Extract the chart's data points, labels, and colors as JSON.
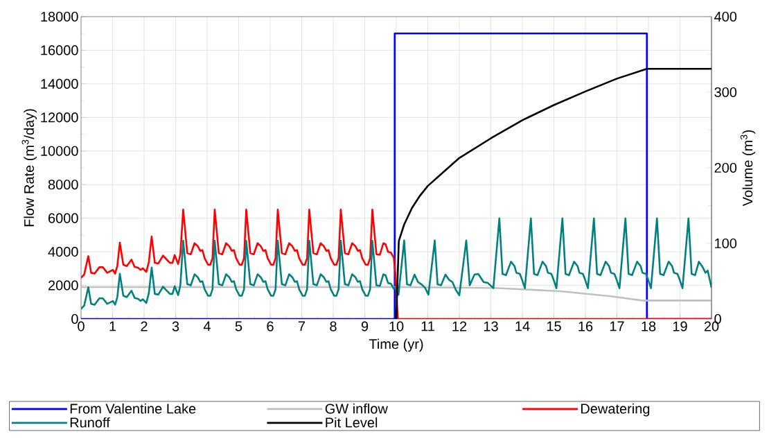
{
  "chart_data": {
    "type": "line",
    "xlabel": "Time (yr)",
    "ylabel": "Flow Rate (m$^{3}$/day)",
    "y2label": "Volume (m$^{3}$)",
    "xlim": [
      0,
      20
    ],
    "xticks": [
      0,
      1,
      2,
      3,
      4,
      5,
      6,
      7,
      8,
      9,
      10,
      11,
      12,
      13,
      14,
      15,
      16,
      17,
      18,
      19,
      20
    ],
    "ylim": [
      0,
      18000
    ],
    "yticks": [
      0,
      2000,
      4000,
      6000,
      8000,
      10000,
      12000,
      14000,
      16000,
      18000
    ],
    "y2lim": [
      0,
      400
    ],
    "y2ticks": [
      0,
      100,
      200,
      300,
      400
    ],
    "grid": true,
    "legend": "bottom",
    "series": [
      {
        "name": "From Valentine Lake",
        "color": "#0000ff",
        "x": [
          0,
          9.95,
          9.95,
          17.95,
          17.95,
          20
        ],
        "values": [
          0,
          0,
          17000,
          17000,
          0,
          0
        ]
      },
      {
        "name": "GW inflow",
        "color": "#c0c0c0",
        "x": [
          0,
          10,
          13.1,
          15.2,
          16.8,
          17.8,
          18,
          20
        ],
        "values": [
          1900,
          1900,
          1850,
          1650,
          1350,
          1100,
          1100,
          1100
        ]
      },
      {
        "name": "Dewatering",
        "color": "#ff0000",
        "x": [
          0,
          0.1,
          0.23,
          0.32,
          0.43,
          0.58,
          0.69,
          0.83,
          1.01,
          1.08,
          1.15,
          1.23,
          1.34,
          1.45,
          1.6,
          1.7,
          1.81,
          1.89,
          1.96,
          2.07,
          2.15,
          2.24,
          2.34,
          2.45,
          2.6,
          2.71,
          2.82,
          2.9,
          2.97,
          3.08,
          3.15,
          3.24,
          3.37,
          3.48,
          3.6,
          3.7,
          3.78,
          3.85,
          3.92,
          4.03,
          4.1,
          4.17,
          4.24,
          4.37,
          4.48,
          4.6,
          4.7,
          4.78,
          4.85,
          4.92,
          5.03,
          5.1,
          5.17,
          5.24,
          5.37,
          5.48,
          5.6,
          5.7,
          5.78,
          5.85,
          5.92,
          6.03,
          6.1,
          6.17,
          6.24,
          6.37,
          6.48,
          6.6,
          6.7,
          6.78,
          6.85,
          6.92,
          7.03,
          7.1,
          7.17,
          7.24,
          7.37,
          7.48,
          7.6,
          7.7,
          7.78,
          7.85,
          7.92,
          8.03,
          8.1,
          8.17,
          8.24,
          8.37,
          8.48,
          8.6,
          8.7,
          8.78,
          8.85,
          8.92,
          9.03,
          9.1,
          9.17,
          9.24,
          9.37,
          9.48,
          9.59,
          9.66,
          9.74,
          9.83,
          9.92,
          9.97,
          10.05,
          20
        ],
        "values": [
          2450,
          2650,
          3740,
          2750,
          2700,
          3080,
          3080,
          2750,
          2920,
          2700,
          3150,
          4540,
          3230,
          3150,
          3530,
          3100,
          3050,
          2920,
          3020,
          2800,
          3380,
          4910,
          3340,
          3300,
          3770,
          3550,
          3340,
          3340,
          3800,
          3270,
          3850,
          6510,
          3920,
          3850,
          4510,
          4340,
          4060,
          4100,
          3620,
          3230,
          3230,
          3620,
          6510,
          3920,
          3850,
          4510,
          4340,
          4060,
          4100,
          3620,
          3230,
          3230,
          3620,
          6510,
          3920,
          3850,
          4510,
          4340,
          4060,
          4100,
          3620,
          3230,
          3230,
          3620,
          6510,
          3920,
          3850,
          4510,
          4340,
          4060,
          4100,
          3620,
          3230,
          3230,
          3620,
          6510,
          3920,
          3850,
          4510,
          4340,
          4060,
          4100,
          3620,
          3230,
          3230,
          3620,
          6510,
          3920,
          3850,
          4510,
          4340,
          4060,
          4100,
          3620,
          3230,
          3230,
          3620,
          6510,
          3850,
          3820,
          4510,
          4450,
          3990,
          3950,
          3650,
          2750,
          0,
          0
        ]
      },
      {
        "name": "Runoff",
        "color": "#008080",
        "x": [
          0,
          0.1,
          0.23,
          0.32,
          0.43,
          0.58,
          0.69,
          0.83,
          1.01,
          1.08,
          1.15,
          1.23,
          1.34,
          1.45,
          1.6,
          1.7,
          1.81,
          1.89,
          1.96,
          2.07,
          2.15,
          2.24,
          2.34,
          2.45,
          2.6,
          2.71,
          2.82,
          2.9,
          2.97,
          3.08,
          3.15,
          3.24,
          3.37,
          3.48,
          3.6,
          3.7,
          3.78,
          3.85,
          3.92,
          4.03,
          4.1,
          4.17,
          4.24,
          4.37,
          4.48,
          4.6,
          4.7,
          4.78,
          4.85,
          4.92,
          5.03,
          5.1,
          5.17,
          5.24,
          5.37,
          5.48,
          5.6,
          5.7,
          5.78,
          5.85,
          5.92,
          6.03,
          6.1,
          6.17,
          6.24,
          6.37,
          6.48,
          6.6,
          6.7,
          6.78,
          6.85,
          6.92,
          7.03,
          7.1,
          7.17,
          7.24,
          7.37,
          7.48,
          7.6,
          7.7,
          7.78,
          7.85,
          7.92,
          8.03,
          8.1,
          8.17,
          8.24,
          8.37,
          8.48,
          8.6,
          8.7,
          8.78,
          8.85,
          8.92,
          9.03,
          9.1,
          9.17,
          9.24,
          9.37,
          9.48,
          9.59,
          9.66,
          9.74,
          9.83,
          9.92,
          9.97,
          10.07,
          10.25,
          10.34,
          10.45,
          10.58,
          10.69,
          10.8,
          10.91,
          11.02,
          11.22,
          11.31,
          11.42,
          11.56,
          11.67,
          11.78,
          11.89,
          12.0,
          12.22,
          12.33,
          12.48,
          12.6,
          12.77,
          12.9,
          13.08,
          13.27,
          13.37,
          13.48,
          13.64,
          13.75,
          13.81,
          13.92,
          13.99,
          14.08,
          14.27,
          14.37,
          14.48,
          14.64,
          14.75,
          14.81,
          14.92,
          14.99,
          15.08,
          15.27,
          15.37,
          15.48,
          15.64,
          15.75,
          15.81,
          15.92,
          15.99,
          16.08,
          16.27,
          16.37,
          16.48,
          16.64,
          16.75,
          16.81,
          16.92,
          16.99,
          17.08,
          17.27,
          17.37,
          17.48,
          17.64,
          17.75,
          17.81,
          17.92,
          17.99,
          18.08,
          18.27,
          18.37,
          18.48,
          18.64,
          18.75,
          18.81,
          18.92,
          18.99,
          19.08,
          19.27,
          19.37,
          19.48,
          19.6,
          19.7,
          19.81,
          19.88,
          20
        ],
        "values": [
          600,
          800,
          1890,
          900,
          850,
          1230,
          1230,
          900,
          1070,
          850,
          1300,
          2690,
          1380,
          1300,
          1680,
          1250,
          1200,
          1070,
          1170,
          950,
          1530,
          3060,
          1490,
          1450,
          1920,
          1700,
          1490,
          1490,
          1950,
          1420,
          2000,
          4660,
          2070,
          2000,
          2660,
          2490,
          2210,
          2250,
          1770,
          1380,
          1380,
          1770,
          4660,
          2070,
          2000,
          2660,
          2490,
          2210,
          2250,
          1770,
          1380,
          1380,
          1770,
          4660,
          2070,
          2000,
          2660,
          2490,
          2210,
          2250,
          1770,
          1380,
          1380,
          1770,
          4660,
          2070,
          2000,
          2660,
          2490,
          2210,
          2250,
          1770,
          1380,
          1380,
          1770,
          4660,
          2070,
          2000,
          2660,
          2490,
          2210,
          2250,
          1770,
          1380,
          1380,
          1770,
          4660,
          2070,
          2000,
          2660,
          2490,
          2210,
          2250,
          1770,
          1380,
          1380,
          1770,
          4660,
          2000,
          1970,
          2660,
          2600,
          2140,
          2100,
          1800,
          1860,
          1440,
          4670,
          2060,
          2000,
          2640,
          2200,
          2060,
          1860,
          1450,
          4670,
          2060,
          2000,
          2640,
          2340,
          2200,
          1720,
          1410,
          4670,
          2000,
          2640,
          2680,
          2200,
          2150,
          1830,
          5990,
          2680,
          2610,
          3410,
          3150,
          2750,
          2680,
          2340,
          1830,
          5990,
          2680,
          2610,
          3410,
          3150,
          2750,
          2680,
          2340,
          1830,
          5990,
          2680,
          2610,
          3410,
          3150,
          2750,
          2680,
          2340,
          1830,
          5990,
          2680,
          2610,
          3410,
          3150,
          2750,
          2680,
          2340,
          1830,
          5990,
          2680,
          2610,
          3410,
          3150,
          2750,
          2680,
          2340,
          1830,
          5990,
          2680,
          2610,
          3410,
          3150,
          2750,
          2680,
          2340,
          1830,
          5990,
          2680,
          2610,
          3410,
          3150,
          2750,
          2880,
          1870
        ]
      },
      {
        "name": "Pit Level",
        "color": "#000000",
        "axis": "y2",
        "x": [
          10.0,
          10.08,
          10.25,
          10.5,
          10.75,
          11,
          12,
          13,
          14,
          15,
          16,
          17,
          17.95,
          20
        ],
        "values": [
          0,
          103,
          125,
          147,
          163,
          176,
          213,
          239,
          263,
          283,
          301,
          318,
          331,
          331
        ]
      }
    ]
  }
}
